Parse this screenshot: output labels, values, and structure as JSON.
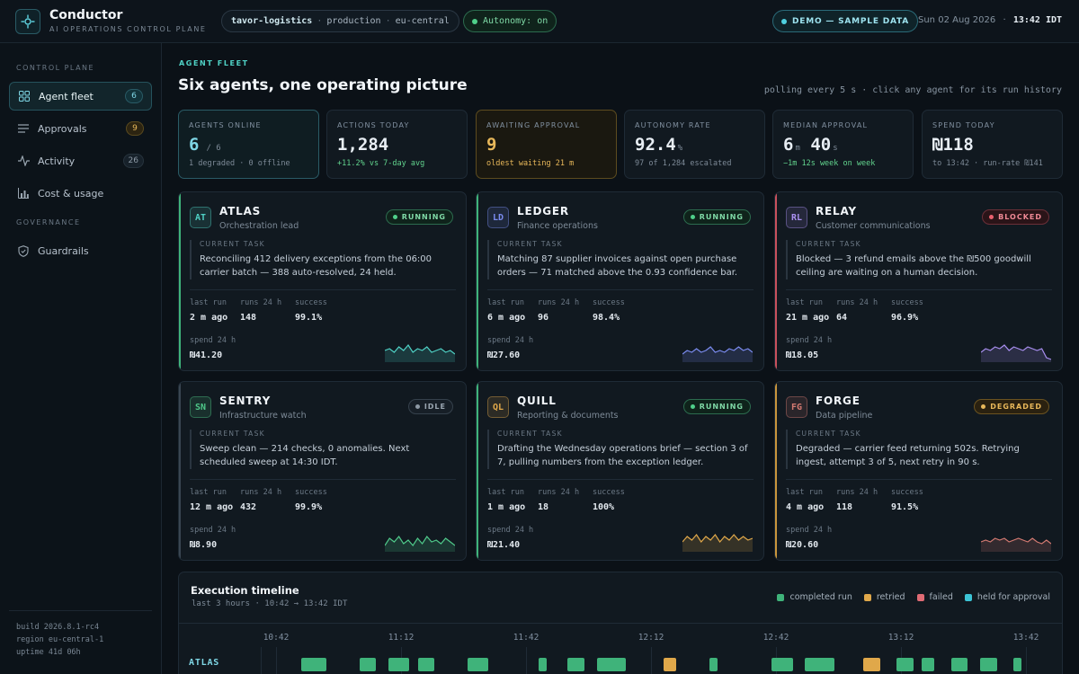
{
  "header": {
    "app_title": "Conductor",
    "app_subtitle": "AI OPERATIONS CONTROL PLANE",
    "org": "tavor-logistics",
    "env": "production",
    "region": "eu-central",
    "autonomy": "Autonomy: on",
    "demo": "DEMO — SAMPLE DATA",
    "date": "Sun 02 Aug 2026",
    "time": "13:42 IDT"
  },
  "sidebar": {
    "section_control": "CONTROL PLANE",
    "section_governance": "GOVERNANCE",
    "items": [
      {
        "label": "Agent fleet",
        "count": "6",
        "icon": "grid-icon"
      },
      {
        "label": "Approvals",
        "count": "9",
        "icon": "list-icon"
      },
      {
        "label": "Activity",
        "count": "26",
        "icon": "pulse-icon"
      },
      {
        "label": "Cost & usage",
        "count": "",
        "icon": "bar-chart-icon"
      },
      {
        "label": "Guardrails",
        "count": "",
        "icon": "shield-icon"
      }
    ],
    "footer": {
      "build_label": "build",
      "build": "2026.8.1-rc4",
      "region_label": "region",
      "region": "eu-central-1",
      "uptime_label": "uptime",
      "uptime": "41d 06h"
    }
  },
  "main": {
    "kicker": "AGENT FLEET",
    "title": "Six agents, one operating picture",
    "poll_note": "polling every 5 s · click any agent for its run history"
  },
  "kpis": [
    {
      "label": "AGENTS ONLINE",
      "value": "6",
      "unit": "/ 6",
      "sub": "1 degraded · 0 offline"
    },
    {
      "label": "ACTIONS TODAY",
      "value": "1,284",
      "unit": "",
      "sub": "+11.2% vs 7-day avg"
    },
    {
      "label": "AWAITING APPROVAL",
      "value": "9",
      "unit": "",
      "sub": "oldest waiting 21 m"
    },
    {
      "label": "AUTONOMY RATE",
      "value": "92.4",
      "unit": "%",
      "sub": "97 of 1,284 escalated"
    },
    {
      "label": "MEDIAN APPROVAL",
      "value": "6",
      "unit": "m",
      "value2": "40",
      "unit2": "s",
      "sub": "−1m 12s week on week"
    },
    {
      "label": "SPEND TODAY",
      "value": "₪118",
      "unit": "",
      "sub": "to 13:42 · run-rate ₪141"
    }
  ],
  "agent_labels": {
    "current_task": "CURRENT TASK",
    "last_run": "last run",
    "runs_24h": "runs 24 h",
    "success": "success",
    "spend_24h": "spend 24 h"
  },
  "agents": [
    {
      "initials": "AT",
      "name": "ATLAS",
      "role": "Orchestration lead",
      "status": "RUNNING",
      "task": "Reconciling 412 delivery exceptions from the 06:00 carrier batch — 388 auto-resolved, 24 held.",
      "last_run": "2 m ago",
      "runs": "148",
      "success": "99.1%",
      "spend": "₪41.20",
      "color": "#4fd1c5",
      "spark": [
        6,
        7,
        5,
        8,
        6,
        9,
        5,
        7,
        6,
        8,
        5,
        6,
        7,
        5,
        6,
        4
      ]
    },
    {
      "initials": "LD",
      "name": "LEDGER",
      "role": "Finance operations",
      "status": "RUNNING",
      "task": "Matching 87 supplier invoices against open purchase orders — 71 matched above the 0.93 confidence bar.",
      "last_run": "6 m ago",
      "runs": "96",
      "success": "98.4%",
      "spend": "₪27.60",
      "color": "#7b8cf0",
      "spark": [
        4,
        6,
        5,
        7,
        5,
        6,
        8,
        5,
        6,
        5,
        7,
        6,
        8,
        6,
        7,
        5
      ]
    },
    {
      "initials": "RL",
      "name": "RELAY",
      "role": "Customer communications",
      "status": "BLOCKED",
      "task": "Blocked — 3 refund emails above the ₪500 goodwill ceiling are waiting on a human decision.",
      "last_run": "21 m ago",
      "runs": "64",
      "success": "96.9%",
      "spend": "₪18.05",
      "color": "#a98ff0",
      "spark": [
        5,
        7,
        6,
        8,
        7,
        9,
        6,
        8,
        7,
        6,
        8,
        7,
        6,
        7,
        2,
        1
      ]
    },
    {
      "initials": "SN",
      "name": "SENTRY",
      "role": "Infrastructure watch",
      "status": "IDLE",
      "task": "Sweep clean — 214 checks, 0 anomalies. Next scheduled sweep at 14:30 IDT.",
      "last_run": "12 m ago",
      "runs": "432",
      "success": "99.9%",
      "spend": "₪8.90",
      "color": "#4fc98a",
      "spark": [
        3,
        7,
        5,
        8,
        4,
        6,
        3,
        7,
        4,
        8,
        5,
        6,
        4,
        7,
        5,
        3
      ]
    },
    {
      "initials": "QL",
      "name": "QUILL",
      "role": "Reporting & documents",
      "status": "RUNNING",
      "task": "Drafting the Wednesday operations brief — section 3 of 7, pulling numbers from the exception ledger.",
      "last_run": "1 m ago",
      "runs": "18",
      "success": "100%",
      "spend": "₪21.40",
      "color": "#e0a84a",
      "spark": [
        5,
        8,
        6,
        9,
        5,
        8,
        6,
        9,
        5,
        8,
        6,
        9,
        6,
        8,
        6,
        7
      ]
    },
    {
      "initials": "FG",
      "name": "FORGE",
      "role": "Data pipeline",
      "status": "DEGRADED",
      "task": "Degraded — carrier feed returning 502s. Retrying ingest, attempt 3 of 5, next retry in 90 s.",
      "last_run": "4 m ago",
      "runs": "118",
      "success": "91.5%",
      "spend": "₪20.60",
      "color": "#d47a72",
      "spark": [
        5,
        6,
        5,
        7,
        6,
        7,
        5,
        6,
        7,
        6,
        5,
        7,
        5,
        4,
        6,
        4
      ]
    }
  ],
  "timeline": {
    "title": "Execution timeline",
    "subtitle": "last 3 hours · 10:42 → 13:42 IDT",
    "legend": [
      {
        "label": "completed run",
        "color": "#3fb37a"
      },
      {
        "label": "retried",
        "color": "#e0a84a"
      },
      {
        "label": "failed",
        "color": "#e06b74"
      },
      {
        "label": "held for approval",
        "color": "#3cc4d6"
      }
    ],
    "ticks": [
      "10:42",
      "11:12",
      "11:42",
      "12:12",
      "12:42",
      "13:12",
      "13:42"
    ],
    "rows": [
      {
        "label": "ATLAS",
        "runs": [
          {
            "start": "10:48",
            "end": "10:54",
            "kind": "completed"
          },
          {
            "start": "11:02",
            "end": "11:06",
            "kind": "completed"
          },
          {
            "start": "11:09",
            "end": "11:14",
            "kind": "completed"
          },
          {
            "start": "11:16",
            "end": "11:20",
            "kind": "completed"
          },
          {
            "start": "11:28",
            "end": "11:33",
            "kind": "completed"
          },
          {
            "start": "11:45",
            "end": "11:47",
            "kind": "completed"
          },
          {
            "start": "11:52",
            "end": "11:56",
            "kind": "completed"
          },
          {
            "start": "11:59",
            "end": "12:06",
            "kind": "completed"
          },
          {
            "start": "12:15",
            "end": "12:18",
            "kind": "retried"
          },
          {
            "start": "12:26",
            "end": "12:28",
            "kind": "completed"
          },
          {
            "start": "12:41",
            "end": "12:46",
            "kind": "completed"
          },
          {
            "start": "12:49",
            "end": "12:56",
            "kind": "completed"
          },
          {
            "start": "13:03",
            "end": "13:07",
            "kind": "retried"
          },
          {
            "start": "13:11",
            "end": "13:15",
            "kind": "completed"
          },
          {
            "start": "13:17",
            "end": "13:20",
            "kind": "completed"
          },
          {
            "start": "13:24",
            "end": "13:28",
            "kind": "completed"
          },
          {
            "start": "13:31",
            "end": "13:35",
            "kind": "completed"
          },
          {
            "start": "13:39",
            "end": "13:41",
            "kind": "completed"
          }
        ]
      }
    ]
  }
}
